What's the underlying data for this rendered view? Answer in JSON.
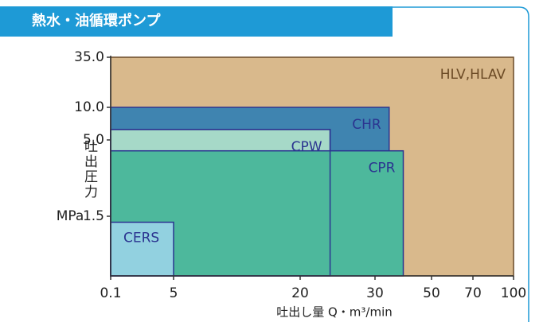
{
  "header": {
    "title": "熱水・油循環ポンプ"
  },
  "chart_data": {
    "type": "range",
    "xlabel": "吐出し量 Q・m³/min",
    "ylabel": "吐出圧力",
    "yunit": "MPa",
    "xlim": [
      0.1,
      100
    ],
    "xticks": [
      0.1,
      5,
      20,
      30,
      50,
      70,
      100
    ],
    "ylim": [
      1,
      35
    ],
    "yticks": [
      {
        "value": 35,
        "label": "35.0"
      },
      {
        "value": 10,
        "label": "10.0"
      },
      {
        "value": 5,
        "label": "5.0"
      },
      1.5
    ],
    "series": [
      {
        "name": "HLV,HLAV",
        "color": "#d9b98c",
        "x_max": 100,
        "y_max": 35
      },
      {
        "name": "CHR",
        "color": "#3f84b0",
        "x_max": 35,
        "y_max": 10
      },
      {
        "name": "CPW",
        "color": "#a6d9c8",
        "x_max": 24,
        "y_max": 6.6
      },
      {
        "name": "CPR",
        "color": "#4db89c",
        "x_max": 40,
        "y_max": 4.5
      },
      {
        "name": "CERS",
        "color": "#92d1e0",
        "x_max": 5,
        "y_max": 1.45
      }
    ]
  }
}
